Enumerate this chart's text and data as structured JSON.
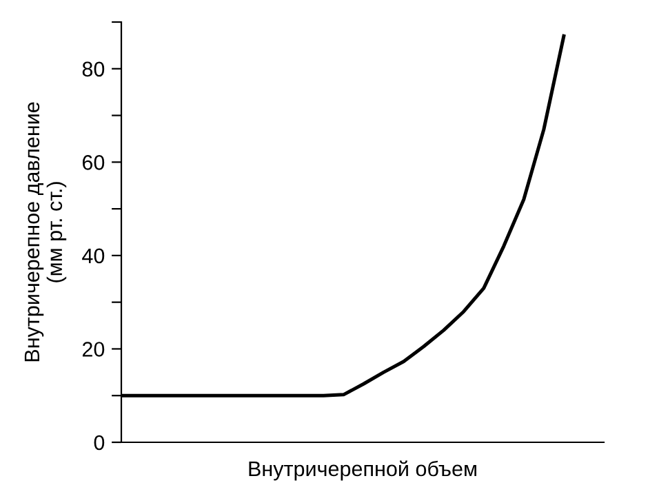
{
  "chart_data": {
    "type": "line",
    "xlabel": "Внутричерепной объем",
    "ylabel": "Внутричерепное давление\n(мм рт. ст.)",
    "categories": [
      null,
      null,
      null,
      null,
      null,
      null,
      null,
      null,
      null,
      null,
      null,
      null,
      null,
      null,
      null,
      null,
      null,
      null,
      null,
      null,
      null,
      null,
      null,
      null,
      null
    ],
    "series": [
      {
        "color": "#000000",
        "values": [
          10,
          10,
          10,
          10,
          10,
          10,
          10,
          10,
          10,
          10,
          10,
          10.2,
          12.5,
          15,
          17.3,
          20.5,
          24,
          28,
          33,
          42,
          52,
          67,
          87,
          null,
          null
        ]
      }
    ],
    "ylim": [
      0,
      90
    ],
    "yticks": [
      0,
      {
        "value": 10,
        "label": null
      },
      20,
      {
        "value": 30,
        "label": null
      },
      40,
      {
        "value": 50,
        "label": null
      },
      60,
      {
        "value": 70,
        "label": null
      },
      80,
      {
        "value": 90,
        "label": null
      }
    ],
    "grid": false,
    "legend": false,
    "marker": "none",
    "line_style": "solid"
  }
}
